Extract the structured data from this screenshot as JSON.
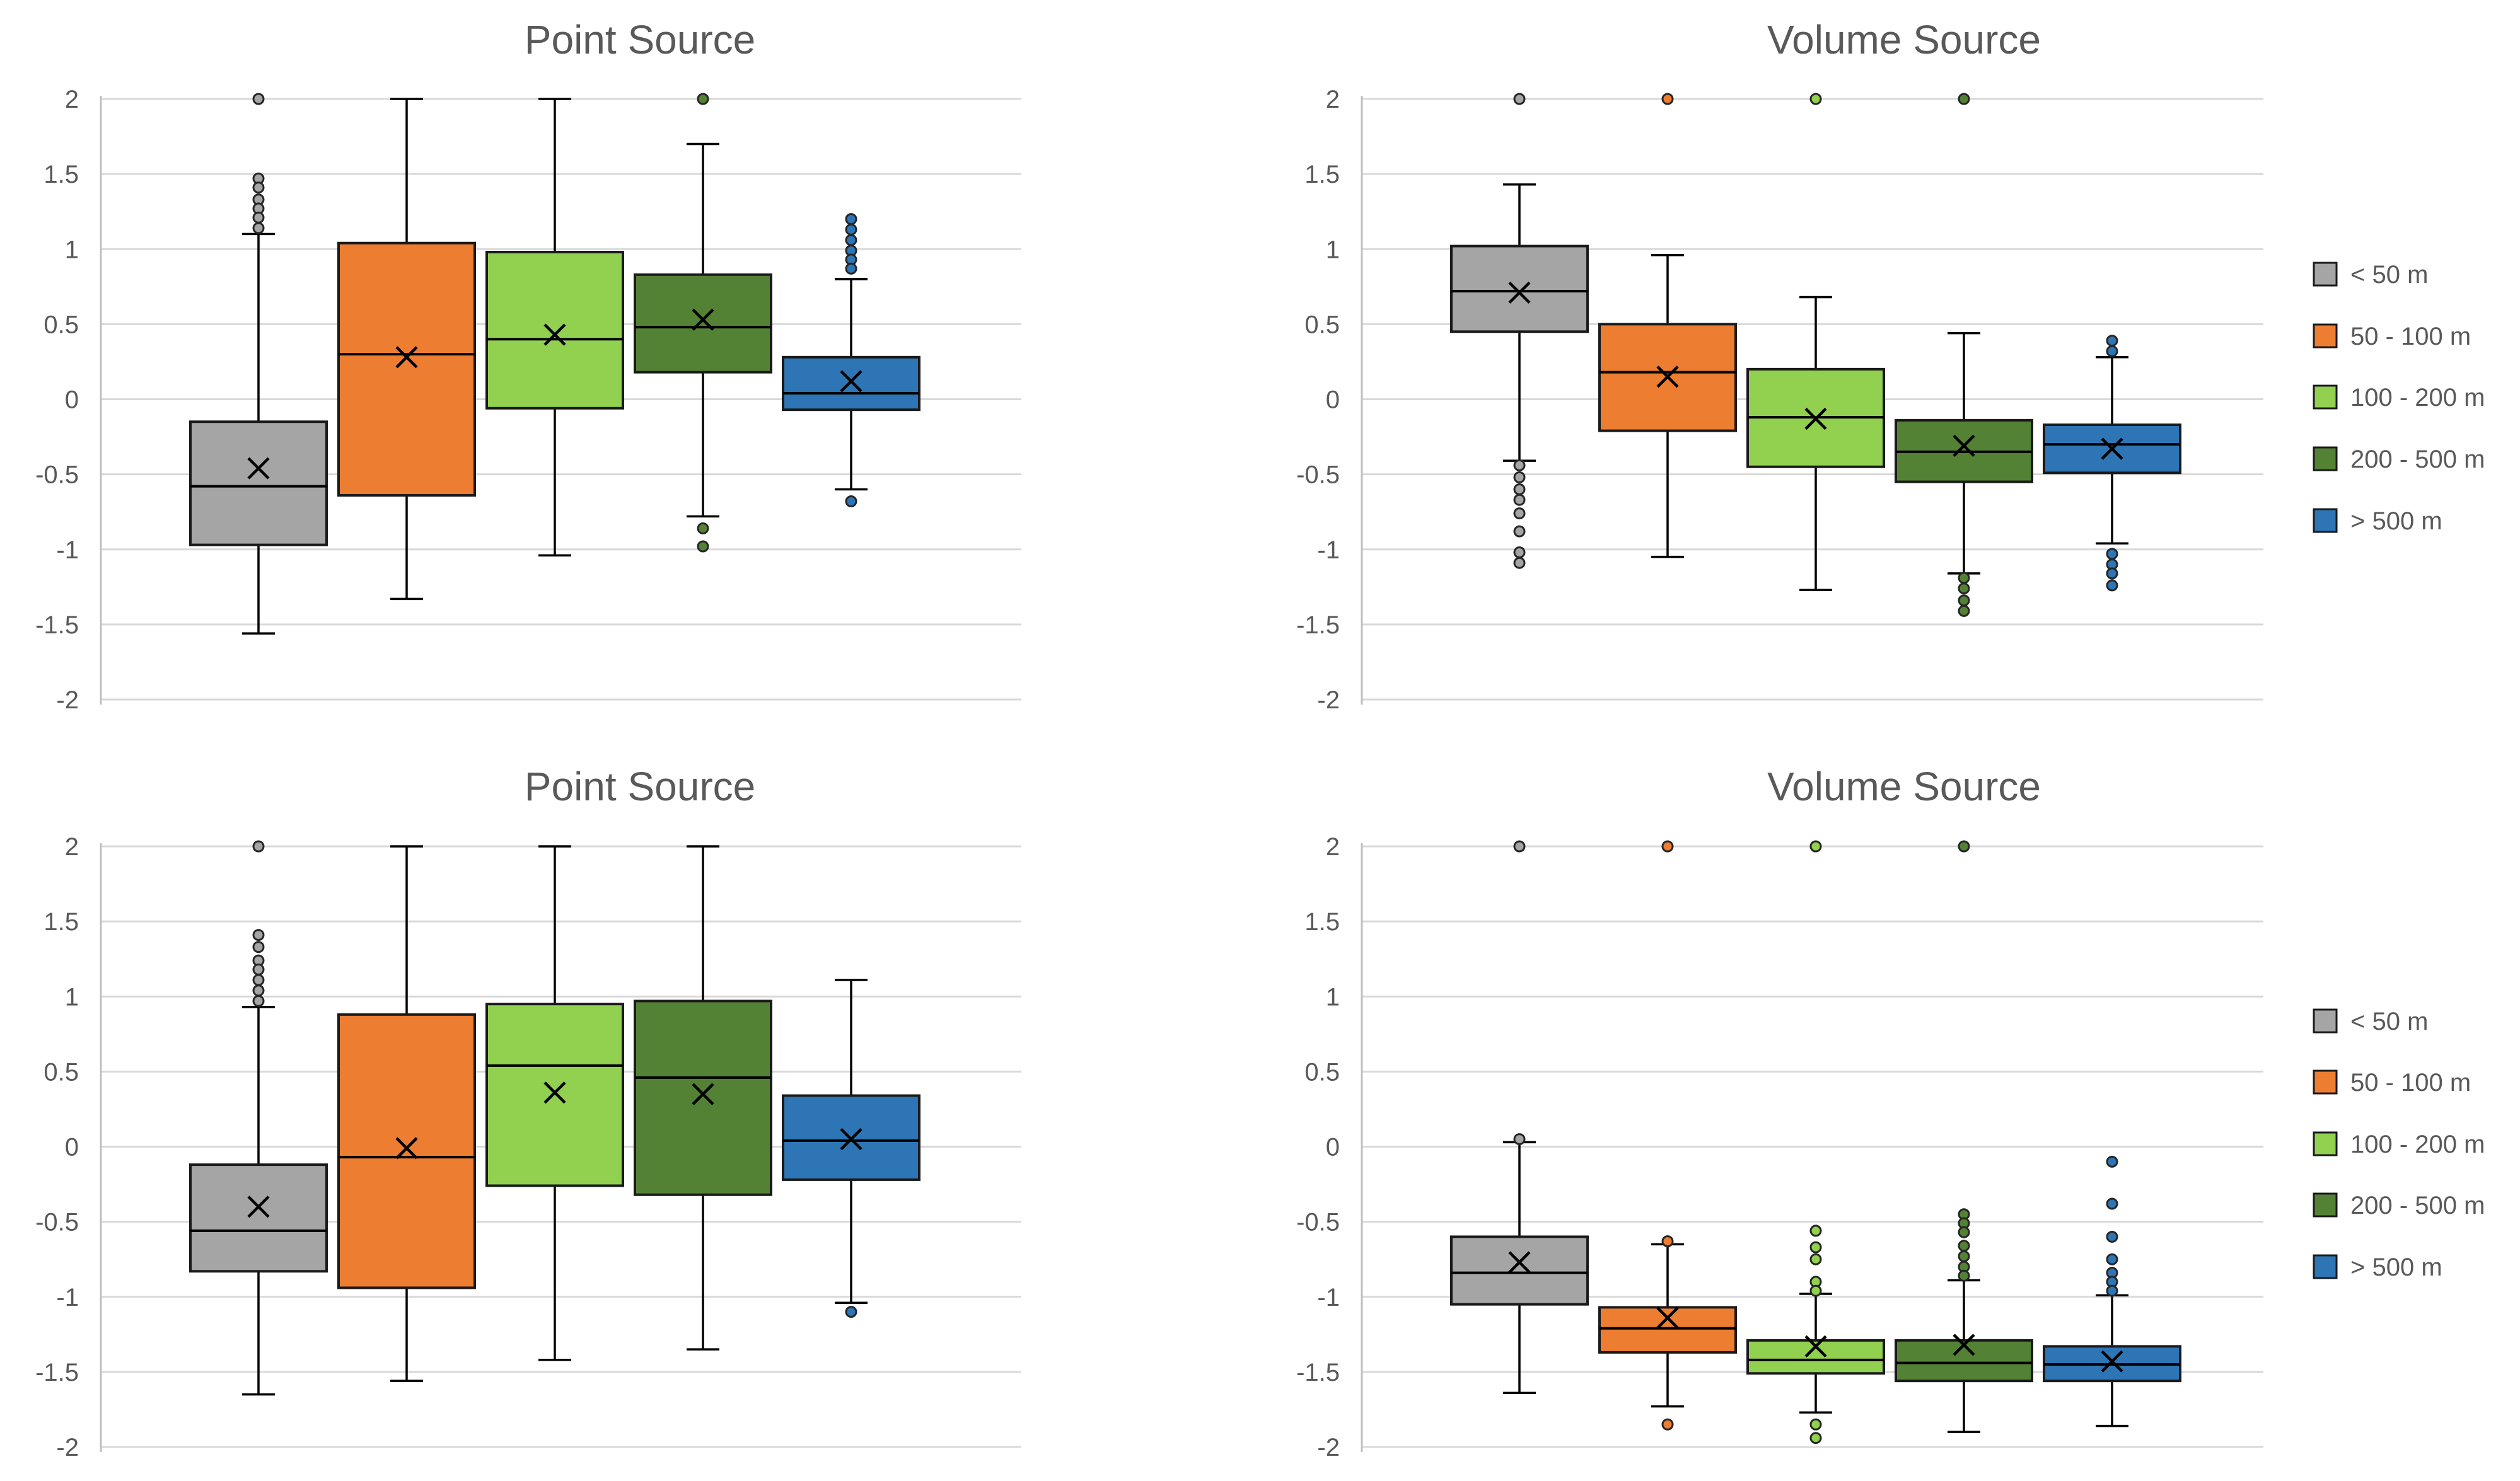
{
  "colors": {
    "lt50": "#a5a5a5",
    "50-100": "#ed7d31",
    "100-200": "#92d050",
    "200-500": "#548235",
    "gt500": "#2e75b6"
  },
  "legend": [
    {
      "key": "lt50",
      "label": "< 50 m"
    },
    {
      "key": "50-100",
      "label": "50 - 100 m"
    },
    {
      "key": "100-200",
      "label": "100 - 200 m"
    },
    {
      "key": "200-500",
      "label": "200 - 500 m"
    },
    {
      "key": "gt500",
      "label": "> 500 m"
    }
  ],
  "chart_data": [
    {
      "type": "box",
      "title": "Point Source",
      "ylim": [
        -2,
        2
      ],
      "yticks": [
        2,
        1.5,
        1,
        0.5,
        0,
        -0.5,
        -1,
        -1.5,
        -2
      ],
      "ytick_labels": [
        "2",
        "1.5",
        "1",
        "0.5",
        "0",
        "-0.5",
        "-1",
        "-1.5",
        "-2"
      ],
      "grid": true,
      "legend": false,
      "series": [
        {
          "key": "lt50",
          "min": -1.56,
          "q1": -0.97,
          "median": -0.58,
          "q3": -0.15,
          "max": 1.1,
          "mean": -0.46,
          "outliers": [
            2,
            1.47,
            1.41,
            1.33,
            1.27,
            1.21,
            1.14
          ]
        },
        {
          "key": "50-100",
          "min": -1.33,
          "q1": -0.64,
          "median": 0.3,
          "q3": 1.04,
          "max": 2.0,
          "mean": 0.28,
          "outliers": []
        },
        {
          "key": "100-200",
          "min": -1.04,
          "q1": -0.06,
          "median": 0.4,
          "q3": 0.98,
          "max": 2.0,
          "mean": 0.43,
          "outliers": []
        },
        {
          "key": "200-500",
          "min": -0.78,
          "q1": 0.18,
          "median": 0.48,
          "q3": 0.83,
          "max": 1.7,
          "mean": 0.53,
          "outliers": [
            2,
            -0.86,
            -0.98
          ]
        },
        {
          "key": "gt500",
          "min": -0.6,
          "q1": -0.07,
          "median": 0.04,
          "q3": 0.28,
          "max": 0.8,
          "mean": 0.12,
          "outliers": [
            1.2,
            1.13,
            1.06,
            0.99,
            0.93,
            0.87,
            -0.68
          ]
        }
      ]
    },
    {
      "type": "box",
      "title": "Volume Source",
      "ylim": [
        -2,
        2
      ],
      "yticks": [
        2,
        1.5,
        1,
        0.5,
        0,
        -0.5,
        -1,
        -1.5,
        -2
      ],
      "ytick_labels": [
        "2",
        "1.5",
        "1",
        "0.5",
        "0",
        "-0.5",
        "-1",
        "-1.5",
        "-2"
      ],
      "grid": true,
      "legend": "right",
      "series": [
        {
          "key": "lt50",
          "min": -0.41,
          "q1": 0.45,
          "median": 0.72,
          "q3": 1.02,
          "max": 1.43,
          "mean": 0.71,
          "outliers": [
            2,
            -0.44,
            -0.52,
            -0.6,
            -0.67,
            -0.76,
            -0.88,
            -1.02,
            -1.09
          ]
        },
        {
          "key": "50-100",
          "min": -1.05,
          "q1": -0.21,
          "median": 0.18,
          "q3": 0.5,
          "max": 0.96,
          "mean": 0.15,
          "outliers": [
            2
          ]
        },
        {
          "key": "100-200",
          "min": -1.27,
          "q1": -0.45,
          "median": -0.12,
          "q3": 0.2,
          "max": 0.68,
          "mean": -0.13,
          "outliers": [
            2
          ]
        },
        {
          "key": "200-500",
          "min": -1.16,
          "q1": -0.55,
          "median": -0.35,
          "q3": -0.14,
          "max": 0.44,
          "mean": -0.31,
          "outliers": [
            2,
            -1.19,
            -1.26,
            -1.34,
            -1.41
          ]
        },
        {
          "key": "gt500",
          "min": -0.96,
          "q1": -0.49,
          "median": -0.3,
          "q3": -0.17,
          "max": 0.28,
          "mean": -0.33,
          "outliers": [
            0.39,
            0.32,
            -1.03,
            -1.1,
            -1.16,
            -1.24
          ]
        }
      ]
    },
    {
      "type": "box",
      "title": "Point Source",
      "ylim": [
        -2,
        2
      ],
      "yticks": [
        2,
        1.5,
        1,
        0.5,
        0,
        -0.5,
        -1,
        -1.5,
        -2
      ],
      "ytick_labels": [
        "2",
        "1.5",
        "1",
        "0.5",
        "0",
        "-0.5",
        "-1",
        "-1.5",
        "-2"
      ],
      "grid": true,
      "legend": false,
      "series": [
        {
          "key": "lt50",
          "min": -1.65,
          "q1": -0.83,
          "median": -0.56,
          "q3": -0.12,
          "max": 0.93,
          "mean": -0.4,
          "outliers": [
            2,
            1.41,
            1.33,
            1.24,
            1.18,
            1.11,
            1.04,
            0.97
          ]
        },
        {
          "key": "50-100",
          "min": -1.56,
          "q1": -0.94,
          "median": -0.07,
          "q3": 0.88,
          "max": 2.0,
          "mean": -0.01,
          "outliers": []
        },
        {
          "key": "100-200",
          "min": -1.42,
          "q1": -0.26,
          "median": 0.54,
          "q3": 0.95,
          "max": 2.0,
          "mean": 0.36,
          "outliers": []
        },
        {
          "key": "200-500",
          "min": -1.35,
          "q1": -0.32,
          "median": 0.46,
          "q3": 0.97,
          "max": 2.0,
          "mean": 0.35,
          "outliers": []
        },
        {
          "key": "gt500",
          "min": -1.04,
          "q1": -0.22,
          "median": 0.04,
          "q3": 0.34,
          "max": 1.11,
          "mean": 0.05,
          "outliers": [
            -1.1
          ]
        }
      ]
    },
    {
      "type": "box",
      "title": "Volume Source",
      "ylim": [
        -2,
        2
      ],
      "yticks": [
        2,
        1.5,
        1,
        0.5,
        0,
        -0.5,
        -1,
        -1.5,
        -2
      ],
      "ytick_labels": [
        "2",
        "1.5",
        "1",
        "0.5",
        "0",
        "-0.5",
        "-1",
        "-1.5",
        "-2"
      ],
      "grid": true,
      "legend": "right",
      "series": [
        {
          "key": "lt50",
          "min": -1.64,
          "q1": -1.05,
          "median": -0.84,
          "q3": -0.6,
          "max": 0.03,
          "mean": -0.77,
          "outliers": [
            2,
            0.05
          ]
        },
        {
          "key": "50-100",
          "min": -1.73,
          "q1": -1.37,
          "median": -1.21,
          "q3": -1.07,
          "max": -0.65,
          "mean": -1.14,
          "outliers": [
            2,
            -0.63,
            -1.85
          ]
        },
        {
          "key": "100-200",
          "min": -1.77,
          "q1": -1.51,
          "median": -1.42,
          "q3": -1.29,
          "max": -0.98,
          "mean": -1.33,
          "outliers": [
            2,
            -0.56,
            -0.67,
            -0.75,
            -0.9,
            -0.96,
            -1.85,
            -1.94
          ]
        },
        {
          "key": "200-500",
          "min": -1.9,
          "q1": -1.56,
          "median": -1.44,
          "q3": -1.29,
          "max": -0.89,
          "mean": -1.32,
          "outliers": [
            2,
            -0.45,
            -0.51,
            -0.57,
            -0.66,
            -0.73,
            -0.8,
            -0.86
          ]
        },
        {
          "key": "gt500",
          "min": -1.86,
          "q1": -1.56,
          "median": -1.45,
          "q3": -1.33,
          "max": -0.99,
          "mean": -1.43,
          "outliers": [
            -0.1,
            -0.38,
            -0.6,
            -0.75,
            -0.84,
            -0.9,
            -0.96
          ]
        }
      ]
    }
  ]
}
